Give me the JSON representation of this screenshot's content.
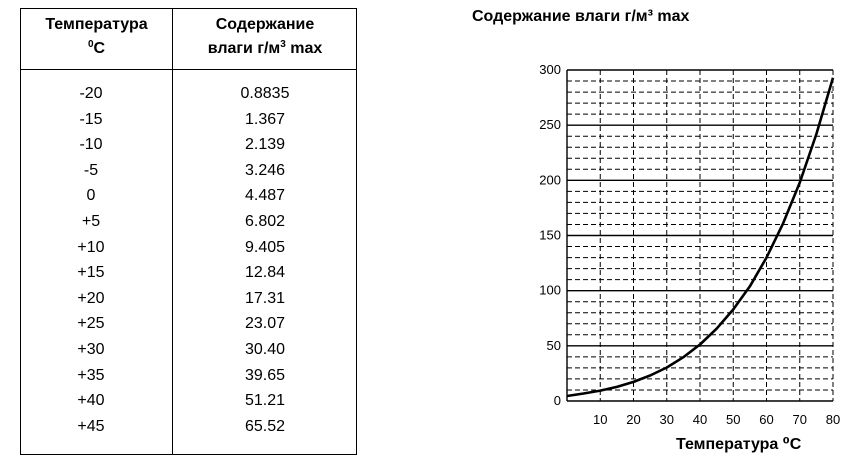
{
  "table": {
    "header_temp": "Температура",
    "header_temp_unit_sup": "0",
    "header_temp_unit": "C",
    "header_content_line1": "Содержание",
    "header_content_line2": "влаги г/м",
    "header_content_sup": "3",
    "header_content_tail": " max",
    "rows": [
      {
        "t": "-20",
        "m": "0.8835"
      },
      {
        "t": "-15",
        "m": "1.367"
      },
      {
        "t": "-10",
        "m": "2.139"
      },
      {
        "t": "-5",
        "m": "3.246"
      },
      {
        "t": "0",
        "m": "4.487"
      },
      {
        "t": "+5",
        "m": "6.802"
      },
      {
        "t": "+10",
        "m": "9.405"
      },
      {
        "t": "+15",
        "m": "12.84"
      },
      {
        "t": "+20",
        "m": "17.31"
      },
      {
        "t": "+25",
        "m": "23.07"
      },
      {
        "t": "+30",
        "m": "30.40"
      },
      {
        "t": "+35",
        "m": "39.65"
      },
      {
        "t": "+40",
        "m": "51.21"
      },
      {
        "t": "+45",
        "m": "65.52"
      }
    ]
  },
  "chart_data": {
    "type": "line",
    "title": "Содержание влаги г/м³ max",
    "xlabel": "Температура ⁰C",
    "ylabel": "",
    "xlim": [
      0,
      80
    ],
    "ylim": [
      0,
      300
    ],
    "x_ticks": [
      10,
      20,
      30,
      40,
      50,
      60,
      70,
      80
    ],
    "y_ticks": [
      0,
      50,
      100,
      150,
      200,
      250,
      300
    ],
    "grid": true,
    "series": [
      {
        "x": [
          0,
          5,
          10,
          15,
          20,
          25,
          30,
          35,
          40,
          45,
          50,
          55,
          60,
          65,
          70,
          75,
          80
        ],
        "values": [
          4.5,
          6.8,
          9.4,
          12.8,
          17.3,
          23.1,
          30.4,
          39.7,
          51.2,
          65.5,
          83,
          104,
          130,
          161,
          198,
          242,
          293
        ]
      }
    ],
    "color": "#000000"
  }
}
